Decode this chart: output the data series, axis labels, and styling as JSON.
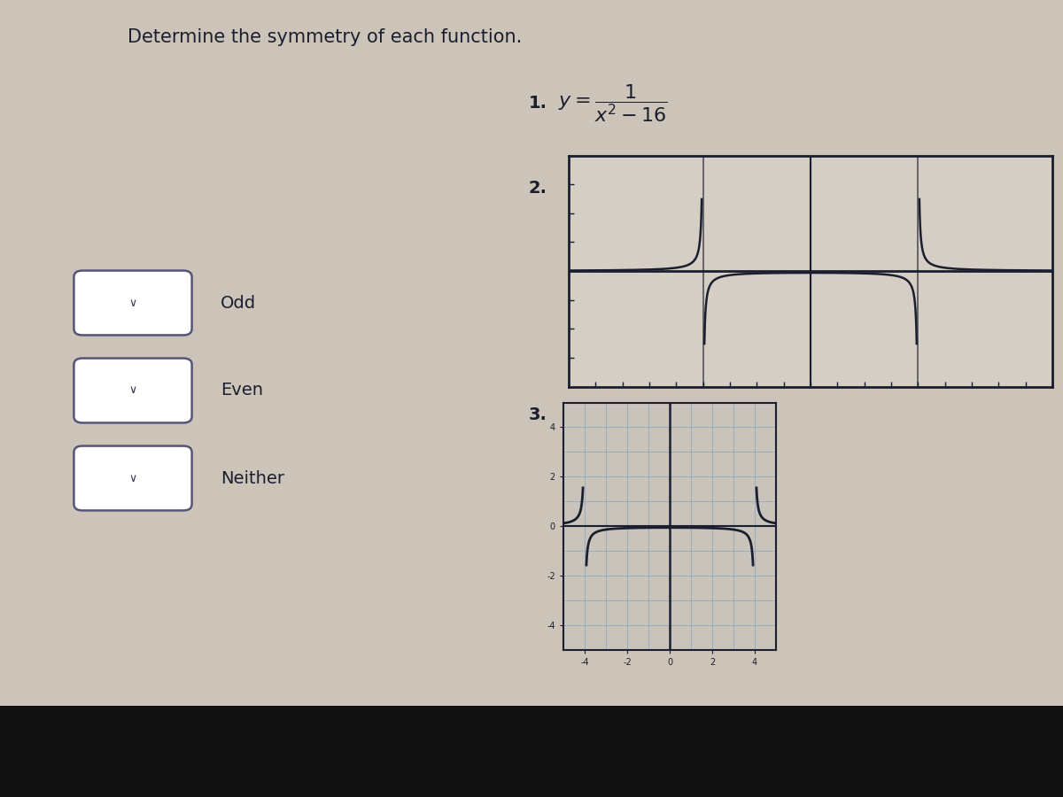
{
  "title": "Determine the symmetry of each function.",
  "title_fontsize": 15,
  "bg_color": "#ccc4b8",
  "label_color": "#1a1e2e",
  "dropdown_labels": [
    "Odd",
    "Even",
    "Neither"
  ],
  "box_border": "#6670aa",
  "graph2_bg": "#d4cec4",
  "graph3_bg": "#c8c4bc",
  "graph3_grid_color": "#7a9abf",
  "black_bar_height": 0.115
}
